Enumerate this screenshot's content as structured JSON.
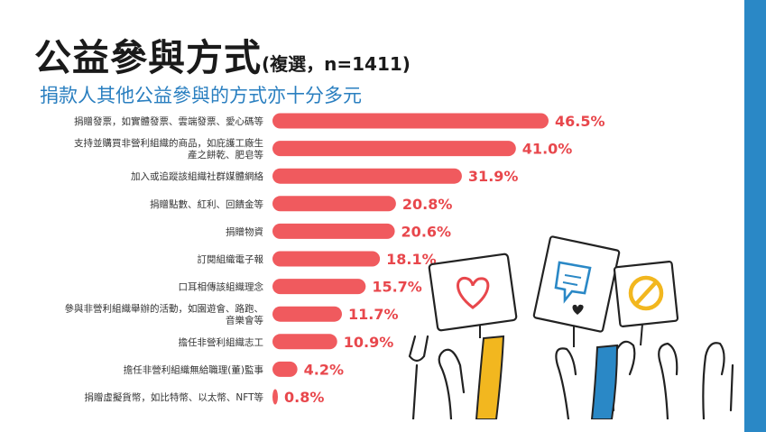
{
  "header": {
    "title": "公益參與方式",
    "title_note": "(複選，n=1411)",
    "subtitle": "捐款人其他公益參與的方式亦十分多元"
  },
  "colors": {
    "bar": "#f05a5e",
    "value_text": "#e8474c",
    "accent_bar": "#2a88c6",
    "subtitle": "#2a7fc0"
  },
  "chart_data": {
    "type": "bar",
    "orientation": "horizontal",
    "categories": [
      [
        "捐贈發票，如實體發票、雲端發票、愛心碼等"
      ],
      [
        "支持並購買非營利組織的商品，如庇護工廠生",
        "產之餅乾、肥皂等"
      ],
      [
        "加入或追蹤該組織社群媒體網絡"
      ],
      [
        "捐贈點數、紅利、回饋金等"
      ],
      [
        "捐贈物資"
      ],
      [
        "訂閱組織電子報"
      ],
      [
        "口耳相傳該組織理念"
      ],
      [
        "參與非營利組織舉辦的活動，如園遊會、路跑、",
        "音樂會等"
      ],
      [
        "擔任非營利組織志工"
      ],
      [
        "擔任非營利組織無給職理(董)監事"
      ],
      [
        "捐贈虛擬貨幣，如比特幣、以太幣、NFT等"
      ]
    ],
    "values": [
      46.5,
      41.0,
      31.9,
      20.8,
      20.6,
      18.1,
      15.7,
      11.7,
      10.9,
      4.2,
      0.8
    ],
    "value_labels": [
      "46.5%",
      "41.0%",
      "31.9%",
      "20.8%",
      "20.6%",
      "18.1%",
      "15.7%",
      "11.7%",
      "10.9%",
      "4.2%",
      "0.8%"
    ],
    "xlim": [
      0,
      46.5
    ],
    "grid": false,
    "legend": "none"
  },
  "illustration": {
    "signs": [
      "heart-sign",
      "speech-bubble-sign",
      "no-sign"
    ]
  }
}
